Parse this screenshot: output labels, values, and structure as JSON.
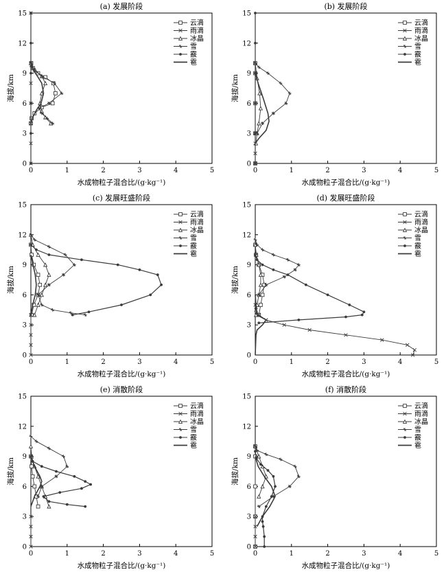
{
  "figure": {
    "ylabel": "海拔/km",
    "xlabel": "水成物粒子混合比/(g·kg⁻¹)"
  },
  "colors": {
    "axis": "#000000",
    "lines": "#3a3a3a"
  },
  "chart_data": [
    {
      "type": "line",
      "title": "(a) 发展阶段",
      "xlabel": "水成物粒子混合比/(g·kg⁻¹)",
      "ylabel": "海拔/km",
      "xlim": [
        0,
        5
      ],
      "ylim": [
        0,
        15
      ],
      "xticks": [
        "0",
        "1",
        "2",
        "3",
        "4",
        "5"
      ],
      "yticks": [
        "0",
        "3",
        "6",
        "9",
        "12",
        "15"
      ],
      "legend": "top-right",
      "series": [
        {
          "name": "云滴",
          "marker": "square",
          "x": [
            0,
            0.02,
            0.1,
            0.3,
            0.6,
            0.68,
            0.62,
            0.4,
            0.2,
            0.06,
            0.01
          ],
          "y": [
            4,
            4.5,
            5,
            5.6,
            6,
            7,
            8,
            8.6,
            9,
            9.5,
            10
          ]
        },
        {
          "name": "雨滴",
          "marker": "x",
          "x": [
            0,
            0,
            0,
            0,
            0,
            0,
            0
          ],
          "y": [
            0,
            2,
            4,
            6,
            8,
            10,
            15
          ]
        },
        {
          "name": "冰晶",
          "marker": "tri",
          "x": [
            0.55,
            0.4,
            0.3,
            0.25,
            0.3,
            0.4,
            0.3,
            0.12,
            0.02,
            0
          ],
          "y": [
            4,
            4.6,
            5.2,
            6,
            7,
            8,
            8.7,
            9.3,
            9.8,
            10
          ]
        },
        {
          "name": "雪",
          "marker": "star",
          "x": [
            0.6,
            0.45,
            0.3,
            0.22,
            0.5,
            0.85,
            0.65,
            0.3,
            0.1,
            0
          ],
          "y": [
            4,
            4.5,
            5,
            5.5,
            6,
            7,
            8,
            8.7,
            9.3,
            10
          ]
        },
        {
          "name": "霰",
          "marker": "dot",
          "x": [
            0,
            0,
            0,
            0,
            0,
            0
          ],
          "y": [
            0,
            3,
            6,
            9,
            12,
            15
          ]
        },
        {
          "name": "雹",
          "marker": "none",
          "x": [
            0,
            0.05,
            0.15,
            0.28,
            0.35,
            0.3,
            0.18,
            0.05,
            0
          ],
          "y": [
            4,
            4.6,
            5.3,
            6,
            7,
            8,
            8.7,
            9.4,
            10
          ]
        }
      ]
    },
    {
      "type": "line",
      "title": "(b) 发展阶段",
      "xlabel": "水成物粒子混合比/(g·kg⁻¹)",
      "ylabel": "海拔/km",
      "xlim": [
        0,
        5
      ],
      "ylim": [
        0,
        15
      ],
      "xticks": [
        "0",
        "1",
        "2",
        "3",
        "4",
        "5"
      ],
      "yticks": [
        "0",
        "3",
        "6",
        "9",
        "12",
        "15"
      ],
      "legend": "top-right",
      "series": [
        {
          "name": "云滴",
          "marker": "square",
          "x": [
            0,
            0,
            0,
            0,
            0
          ],
          "y": [
            0,
            3,
            6,
            9,
            10
          ]
        },
        {
          "name": "雨滴",
          "marker": "x",
          "x": [
            0,
            0,
            0,
            0
          ],
          "y": [
            0,
            1,
            2,
            3
          ]
        },
        {
          "name": "冰晶",
          "marker": "tri",
          "x": [
            0.02,
            0.05,
            0.1,
            0.15,
            0.12,
            0.05,
            0
          ],
          "y": [
            2,
            3,
            4,
            5.5,
            7,
            8.5,
            10
          ]
        },
        {
          "name": "雪",
          "marker": "star",
          "x": [
            0.05,
            0.2,
            0.5,
            0.85,
            0.95,
            0.7,
            0.35,
            0.1,
            0
          ],
          "y": [
            3,
            4,
            5,
            6,
            7,
            8,
            9,
            9.6,
            10
          ]
        },
        {
          "name": "霰",
          "marker": "dot",
          "x": [
            0,
            0,
            0,
            0,
            0,
            0
          ],
          "y": [
            0,
            3,
            6,
            9,
            12,
            15
          ]
        },
        {
          "name": "雹",
          "marker": "none",
          "x": [
            0,
            0.1,
            0.3,
            0.38,
            0.35,
            0.22,
            0.08,
            0
          ],
          "y": [
            2,
            2.5,
            3.3,
            4.2,
            5,
            6.5,
            8,
            9
          ]
        }
      ]
    },
    {
      "type": "line",
      "title": "(c) 发展旺盛阶段",
      "xlabel": "水成物粒子混合比/(g·kg⁻¹)",
      "ylabel": "海拔/km",
      "xlim": [
        0,
        5
      ],
      "ylim": [
        0,
        15
      ],
      "xticks": [
        "0",
        "1",
        "2",
        "3",
        "4",
        "5"
      ],
      "yticks": [
        "0",
        "3",
        "6",
        "9",
        "12",
        "15"
      ],
      "legend": "top-right",
      "series": [
        {
          "name": "云滴",
          "marker": "square",
          "x": [
            0.02,
            0.08,
            0.2,
            0.25,
            0.2,
            0.08,
            0.02,
            0
          ],
          "y": [
            4,
            5,
            6,
            7,
            8,
            9,
            10,
            11
          ]
        },
        {
          "name": "雨滴",
          "marker": "x",
          "x": [
            0,
            0,
            0,
            0,
            0
          ],
          "y": [
            0,
            1,
            2,
            3,
            4
          ]
        },
        {
          "name": "冰晶",
          "marker": "tri",
          "x": [
            0.1,
            0.2,
            0.3,
            0.4,
            0.5,
            0.4,
            0.2,
            0.05,
            0
          ],
          "y": [
            4,
            5,
            6,
            7,
            8,
            9,
            10,
            11,
            12
          ]
        },
        {
          "name": "雪",
          "marker": "star",
          "x": [
            1.5,
            1.1,
            0.6,
            0.3,
            0.2,
            0.5,
            0.9,
            1.2,
            0.95,
            0.5,
            0.1,
            0
          ],
          "y": [
            4,
            4.2,
            4.5,
            5,
            6,
            7,
            8,
            9,
            10,
            10.8,
            11.5,
            12
          ]
        },
        {
          "name": "霰",
          "marker": "dot",
          "x": [
            1.15,
            1.6,
            2.5,
            3.3,
            3.6,
            3.5,
            3,
            2.4,
            1.4,
            0.5,
            0.15,
            0
          ],
          "y": [
            4,
            4.3,
            5,
            6,
            7,
            8,
            8.5,
            9,
            9.5,
            10,
            10.5,
            11
          ]
        },
        {
          "name": "雹",
          "marker": "none",
          "x": [
            0,
            0.05,
            0.12,
            0.15,
            0.12,
            0.06,
            0
          ],
          "y": [
            4,
            5,
            6,
            7,
            8,
            9,
            10
          ]
        }
      ]
    },
    {
      "type": "line",
      "title": "(d) 发展旺盛阶段",
      "xlabel": "水成物粒子混合比/(g·kg⁻¹)",
      "ylabel": "海拔/km",
      "xlim": [
        0,
        5
      ],
      "ylim": [
        0,
        15
      ],
      "xticks": [
        "0",
        "1",
        "2",
        "3",
        "4",
        "5"
      ],
      "yticks": [
        "0",
        "3",
        "6",
        "9",
        "12",
        "15"
      ],
      "legend": "top-right",
      "series": [
        {
          "name": "云滴",
          "marker": "square",
          "x": [
            0.1,
            0.15,
            0.2,
            0.25,
            0.2,
            0.1,
            0.02,
            0
          ],
          "y": [
            4,
            5,
            6,
            7,
            8,
            9,
            10,
            11
          ]
        },
        {
          "name": "雨滴",
          "marker": "x",
          "x": [
            4.35,
            4.4,
            4.2,
            3.5,
            2.5,
            1.5,
            0.8,
            0.3,
            0.1,
            0.02,
            0
          ],
          "y": [
            0,
            0.5,
            1,
            1.5,
            2,
            2.5,
            3,
            3.5,
            4,
            4.5,
            5
          ]
        },
        {
          "name": "冰晶",
          "marker": "tri",
          "x": [
            0.02,
            0.05,
            0.1,
            0.15,
            0.15,
            0.1,
            0.03,
            0
          ],
          "y": [
            4,
            5,
            6,
            7,
            8,
            9,
            10,
            11
          ]
        },
        {
          "name": "雪",
          "marker": "star",
          "x": [
            0.1,
            0.3,
            0.8,
            1.1,
            1.2,
            0.9,
            0.5,
            0.2,
            0.05,
            0
          ],
          "y": [
            6,
            7,
            7.8,
            8.5,
            9,
            9.5,
            10,
            10.5,
            11,
            11.5
          ]
        },
        {
          "name": "霰",
          "marker": "dot",
          "x": [
            0.1,
            1.2,
            2.5,
            2.95,
            3,
            2.6,
            2,
            1.4,
            0.9,
            0.5,
            0.2,
            0.05,
            0
          ],
          "y": [
            3.2,
            3.5,
            3.8,
            4,
            4.3,
            5,
            6,
            7,
            8,
            8.5,
            9,
            9.5,
            10
          ]
        },
        {
          "name": "雹",
          "marker": "none",
          "x": [
            0,
            0.02,
            0.05,
            0.2,
            0.3,
            0.15,
            0.05,
            0.02,
            0
          ],
          "y": [
            0,
            2,
            2.5,
            3,
            3.5,
            3.8,
            4,
            5,
            6
          ]
        }
      ]
    },
    {
      "type": "line",
      "title": "(e) 消散阶段",
      "xlabel": "水成物粒子混合比/(g·kg⁻¹)",
      "ylabel": "海拔/km",
      "xlim": [
        0,
        5
      ],
      "ylim": [
        0,
        15
      ],
      "xticks": [
        "0",
        "1",
        "2",
        "3",
        "4",
        "5"
      ],
      "yticks": [
        "0",
        "3",
        "6",
        "9",
        "12",
        "15"
      ],
      "legend": "top-right",
      "series": [
        {
          "name": "云滴",
          "marker": "square",
          "x": [
            0.2,
            0.15,
            0.1,
            0.05,
            0.02,
            0
          ],
          "y": [
            4,
            5,
            6,
            7,
            8,
            9
          ]
        },
        {
          "name": "雨滴",
          "marker": "x",
          "x": [
            0,
            0,
            0,
            0
          ],
          "y": [
            0,
            1,
            2,
            3
          ]
        },
        {
          "name": "冰晶",
          "marker": "tri",
          "x": [
            0.5,
            0.4,
            0.3,
            0.2,
            0.1,
            0.02,
            0
          ],
          "y": [
            4,
            5,
            6,
            7,
            8,
            9,
            10
          ]
        },
        {
          "name": "雪",
          "marker": "star",
          "x": [
            0.2,
            0.3,
            0.7,
            1,
            0.9,
            0.5,
            0.15,
            0
          ],
          "y": [
            5,
            6,
            7,
            8,
            9,
            9.8,
            10.5,
            11
          ]
        },
        {
          "name": "霰",
          "marker": "dot",
          "x": [
            1.5,
            1,
            0.5,
            0.35,
            0.8,
            1.4,
            1.65,
            1.5,
            1.2,
            0.7,
            0.3,
            0.05,
            0
          ],
          "y": [
            4,
            4.2,
            4.5,
            5,
            5.4,
            5.8,
            6.2,
            6.5,
            7,
            7.5,
            8,
            8.5,
            9
          ]
        },
        {
          "name": "雹",
          "marker": "none",
          "x": [
            0,
            0.1,
            0.25,
            0.3,
            0.25,
            0.1,
            0
          ],
          "y": [
            4,
            5,
            6,
            6.5,
            7,
            8,
            9
          ]
        }
      ]
    },
    {
      "type": "line",
      "title": "(f) 消散阶段",
      "xlabel": "水成物粒子混合比/(g·kg⁻¹)",
      "ylabel": "海拔/km",
      "xlim": [
        0,
        5
      ],
      "ylim": [
        0,
        15
      ],
      "xticks": [
        "0",
        "1",
        "2",
        "3",
        "4",
        "5"
      ],
      "yticks": [
        "0",
        "3",
        "6",
        "9",
        "12",
        "15"
      ],
      "legend": "top-right",
      "series": [
        {
          "name": "云滴",
          "marker": "square",
          "x": [
            0,
            0,
            0,
            0,
            0
          ],
          "y": [
            0,
            3,
            6,
            9,
            10
          ]
        },
        {
          "name": "雨滴",
          "marker": "x",
          "x": [
            0,
            0,
            0,
            0
          ],
          "y": [
            0,
            1,
            2,
            3
          ]
        },
        {
          "name": "冰晶",
          "marker": "tri",
          "x": [
            0.1,
            0.2,
            0.3,
            0.2,
            0.1,
            0
          ],
          "y": [
            5,
            6,
            7,
            8,
            9,
            10
          ]
        },
        {
          "name": "雪",
          "marker": "star",
          "x": [
            0.1,
            0.5,
            0.95,
            1.2,
            1.1,
            0.7,
            0.3,
            0.05,
            0
          ],
          "y": [
            4,
            5,
            6,
            7,
            8,
            8.7,
            9.2,
            9.6,
            10
          ]
        },
        {
          "name": "霰",
          "marker": "dot",
          "x": [
            0.25,
            0.25,
            0.22,
            0.2,
            0.2,
            0.3,
            0.45,
            0.55,
            0.5,
            0.35,
            0.15,
            0.03,
            0
          ],
          "y": [
            0,
            1,
            2,
            2.5,
            3,
            4,
            5,
            6,
            7,
            7.6,
            8.2,
            8.8,
            9.5
          ]
        },
        {
          "name": "雹",
          "marker": "none",
          "x": [
            0.05,
            0.2,
            0.4,
            0.55,
            0.45,
            0.25,
            0.08,
            0
          ],
          "y": [
            2,
            3,
            4,
            5,
            6,
            7,
            8,
            9
          ]
        }
      ]
    }
  ]
}
